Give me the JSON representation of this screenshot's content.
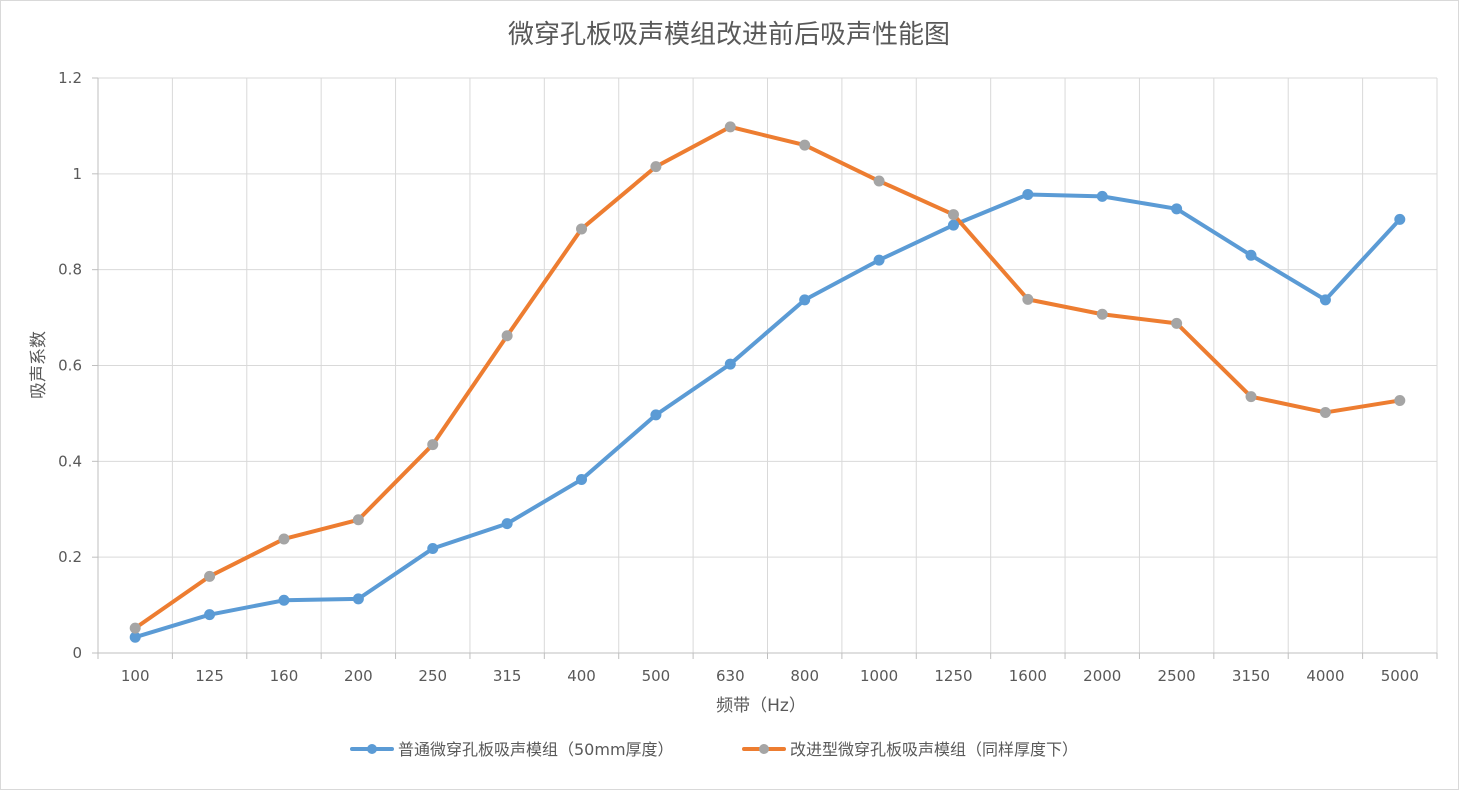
{
  "chart_data": {
    "type": "line",
    "title": "微穿孔板吸声模组改进前后吸声性能图",
    "xlabel": "频带（Hz）",
    "ylabel": "吸声系数",
    "categories": [
      "100",
      "125",
      "160",
      "200",
      "250",
      "315",
      "400",
      "500",
      "630",
      "800",
      "1000",
      "1250",
      "1600",
      "2000",
      "2500",
      "3150",
      "4000",
      "5000"
    ],
    "ylim": [
      0,
      1.2
    ],
    "yticks": [
      "0",
      "0.2",
      "0.4",
      "0.6",
      "0.8",
      "1",
      "1.2"
    ],
    "grid": true,
    "legend_position": "bottom",
    "series": [
      {
        "name": "普通微穿孔板吸声模组（50mm厚度）",
        "color": "#5B9BD5",
        "marker_color": "#5B9BD5",
        "values": [
          0.033,
          0.08,
          0.11,
          0.113,
          0.218,
          0.27,
          0.362,
          0.497,
          0.603,
          0.737,
          0.82,
          0.893,
          0.957,
          0.953,
          0.927,
          0.83,
          0.737,
          0.905
        ]
      },
      {
        "name": "改进型微穿孔板吸声模组（同样厚度下）",
        "color": "#ED7D31",
        "marker_color": "#A5A5A5",
        "values": [
          0.052,
          0.16,
          0.238,
          0.278,
          0.435,
          0.662,
          0.885,
          1.015,
          1.098,
          1.06,
          0.985,
          0.915,
          0.738,
          0.707,
          0.688,
          0.535,
          0.502,
          0.527
        ]
      }
    ]
  }
}
